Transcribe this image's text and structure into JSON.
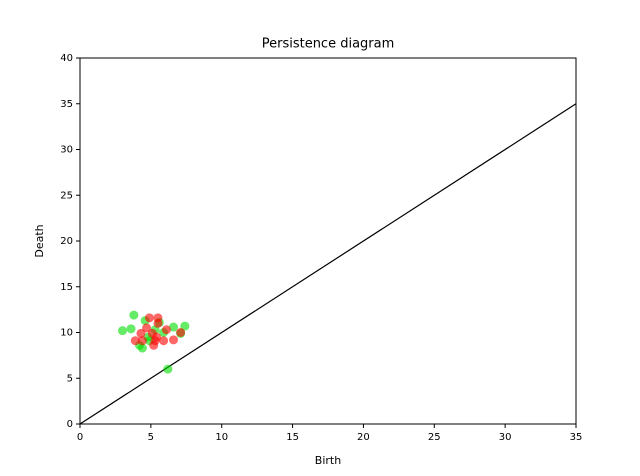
{
  "chart_data": {
    "type": "scatter",
    "title": "Persistence diagram",
    "x_label": "Birth",
    "y_label": "Death",
    "xlim": [
      0,
      35
    ],
    "ylim": [
      0,
      40
    ],
    "xticks": [
      0,
      5,
      10,
      15,
      20,
      25,
      30,
      35
    ],
    "yticks": [
      0,
      5,
      10,
      15,
      20,
      25,
      30,
      35,
      40
    ],
    "diagonal": true,
    "series": [
      {
        "color": "#00dd00",
        "x": [
          3.0,
          3.6,
          3.8,
          4.2,
          4.4,
          4.6,
          4.8,
          5.3,
          5.6,
          5.9,
          6.2,
          6.6,
          7.1,
          7.4,
          4.9
        ],
        "values": [
          10.2,
          10.4,
          11.9,
          8.6,
          8.3,
          11.3,
          9.5,
          10.3,
          11.1,
          10.0,
          6.0,
          10.6,
          9.9,
          10.7,
          9.1
        ]
      },
      {
        "color": "#ff0000",
        "x": [
          3.9,
          4.3,
          4.7,
          4.9,
          5.1,
          5.3,
          5.4,
          5.5,
          5.5,
          5.9,
          6.1,
          6.6,
          7.1,
          4.4,
          5.2
        ],
        "values": [
          9.1,
          9.9,
          10.5,
          11.6,
          9.9,
          9.1,
          9.5,
          11.6,
          11.0,
          9.1,
          10.3,
          9.2,
          10.0,
          9.1,
          8.6
        ]
      }
    ]
  }
}
